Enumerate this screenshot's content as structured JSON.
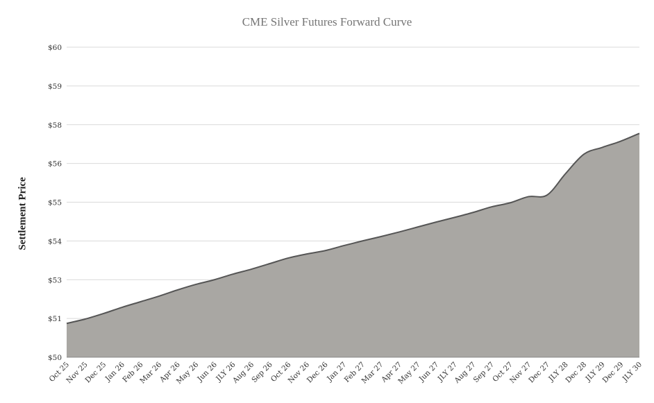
{
  "chart_data": {
    "type": "area",
    "title": "CME Silver Futures Forward Curve",
    "xlabel": "",
    "ylabel": "Settlement Price",
    "ylim": [
      50,
      60
    ],
    "yticks": [
      50,
      51.25,
      52.5,
      53.75,
      55,
      56.25,
      57.5,
      58.75,
      60
    ],
    "ytick_labels": [
      "$50",
      "$51",
      "$53",
      "$54",
      "$55",
      "$56",
      "$58",
      "$59",
      "$60"
    ],
    "grid": true,
    "legend": "none",
    "fill_color": "#a9a7a3",
    "line_color": "#555555",
    "categories": [
      "Oct 25",
      "Nov 25",
      "Dec 25",
      "Jan 26",
      "Feb 26",
      "Mar 26",
      "Apr 26",
      "May 26",
      "Jun 26",
      "JLY 26",
      "Aug 26",
      "Sep 26",
      "Oct 26",
      "Nov 26",
      "Dec 26",
      "Jan 27",
      "Feb 27",
      "Mar 27",
      "Apr 27",
      "May 27",
      "Jun 27",
      "JLY 27",
      "Aug 27",
      "Sep 27",
      "Oct 27",
      "Nov 27",
      "Dec 27",
      "JLY 28",
      "Dec 28",
      "JLY 29",
      "Dec 29",
      "JLY 30"
    ],
    "series": [
      {
        "name": "Settlement Price",
        "values": [
          51.09,
          51.23,
          51.41,
          51.61,
          51.79,
          51.97,
          52.17,
          52.35,
          52.5,
          52.68,
          52.84,
          53.02,
          53.2,
          53.33,
          53.44,
          53.6,
          53.75,
          53.89,
          54.04,
          54.2,
          54.36,
          54.51,
          54.67,
          54.85,
          54.98,
          55.18,
          55.23,
          55.92,
          56.55,
          56.77,
          56.97,
          57.22
        ]
      }
    ]
  }
}
